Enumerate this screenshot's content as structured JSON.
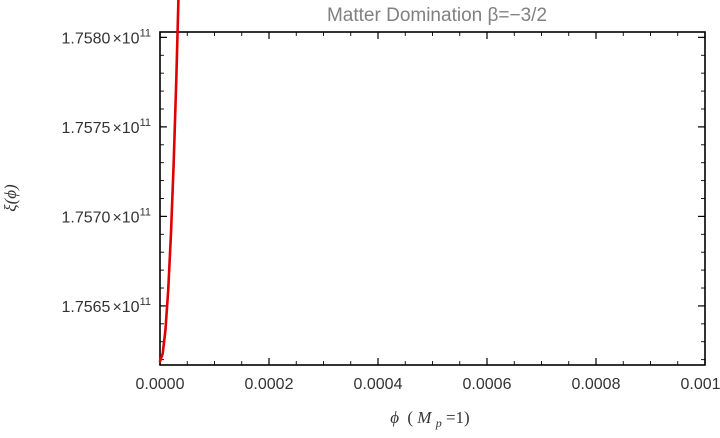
{
  "chart_data": {
    "type": "line",
    "title": "Matter Domination β=−3/2",
    "xlabel": "ϕ (M_p=1)",
    "xlabel_parts": {
      "phi": "ϕ",
      "open": "(",
      "M": "M",
      "p": "p",
      "rest": "=1)"
    },
    "ylabel": "ξ(ϕ)",
    "xlim": [
      0.0,
      0.001
    ],
    "ylim": [
      175617000000,
      175803000000
    ],
    "x_ticks": [
      {
        "value": 0.0,
        "label": "0.0000"
      },
      {
        "value": 0.0002,
        "label": "0.0002"
      },
      {
        "value": 0.0004,
        "label": "0.0004"
      },
      {
        "value": 0.0006,
        "label": "0.0006"
      },
      {
        "value": 0.0008,
        "label": "0.0008"
      },
      {
        "value": 0.001,
        "label": "0.0010"
      }
    ],
    "y_ticks": [
      {
        "value": 175650000000,
        "mantissa": "1.7565",
        "times": "×",
        "base": "10",
        "exp": "11"
      },
      {
        "value": 175700000000,
        "mantissa": "1.7570",
        "times": "×",
        "base": "10",
        "exp": "11"
      },
      {
        "value": 175750000000,
        "mantissa": "1.7575",
        "times": "×",
        "base": "10",
        "exp": "11"
      },
      {
        "value": 175800000000,
        "mantissa": "1.7580",
        "times": "×",
        "base": "10",
        "exp": "11"
      }
    ],
    "series": [
      {
        "name": "ξ(ϕ)",
        "color": "#e00000",
        "model": "quadratic",
        "y0": 175619000000,
        "coef": 176000000000000000,
        "x_range": [
          0.0,
          0.001
        ]
      }
    ]
  }
}
